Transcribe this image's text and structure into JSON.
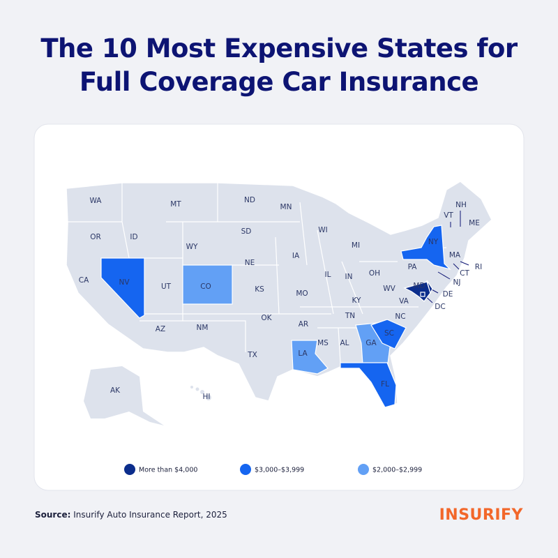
{
  "title": "The 10 Most Expensive States for Full Coverage Car Insurance",
  "map": {
    "states": [
      {
        "label": "WA"
      },
      {
        "label": "OR"
      },
      {
        "label": "CA"
      },
      {
        "label": "NV",
        "color": "#1565f0"
      },
      {
        "label": "ID"
      },
      {
        "label": "MT"
      },
      {
        "label": "WY"
      },
      {
        "label": "UT"
      },
      {
        "label": "CO",
        "color": "#62a0f5"
      },
      {
        "label": "AZ"
      },
      {
        "label": "NM"
      },
      {
        "label": "ND"
      },
      {
        "label": "SD"
      },
      {
        "label": "NE"
      },
      {
        "label": "KS"
      },
      {
        "label": "OK"
      },
      {
        "label": "TX"
      },
      {
        "label": "MN"
      },
      {
        "label": "IA"
      },
      {
        "label": "MO"
      },
      {
        "label": "AR"
      },
      {
        "label": "LA",
        "color": "#62a0f5"
      },
      {
        "label": "WI"
      },
      {
        "label": "IL"
      },
      {
        "label": "MI"
      },
      {
        "label": "IN"
      },
      {
        "label": "OH"
      },
      {
        "label": "KY"
      },
      {
        "label": "TN"
      },
      {
        "label": "MS"
      },
      {
        "label": "AL"
      },
      {
        "label": "GA",
        "color": "#62a0f5"
      },
      {
        "label": "FL",
        "color": "#1565f0"
      },
      {
        "label": "SC",
        "color": "#1565f0"
      },
      {
        "label": "NC"
      },
      {
        "label": "VA"
      },
      {
        "label": "WV"
      },
      {
        "label": "PA"
      },
      {
        "label": "NY",
        "color": "#1565f0"
      },
      {
        "label": "MD",
        "color": "#0b2d8c"
      },
      {
        "label": "DE",
        "color": "#0b2d8c"
      },
      {
        "label": "NJ"
      },
      {
        "label": "DC",
        "color": "#0b2d8c"
      },
      {
        "label": "CT"
      },
      {
        "label": "RI"
      },
      {
        "label": "MA"
      },
      {
        "label": "VT"
      },
      {
        "label": "NH"
      },
      {
        "label": "ME"
      },
      {
        "label": "AK"
      },
      {
        "label": "HI"
      }
    ],
    "legend": [
      {
        "label": "More than $4,000",
        "color": "#0b2d8c"
      },
      {
        "label": "$3,000–$3,999",
        "color": "#1565f0"
      },
      {
        "label": "$2,000–$2,999",
        "color": "#62a0f5"
      }
    ]
  },
  "source": {
    "label": "Source:",
    "text": "Insurify Auto Insurance Report, 2025"
  },
  "logo": "INSURIFY"
}
